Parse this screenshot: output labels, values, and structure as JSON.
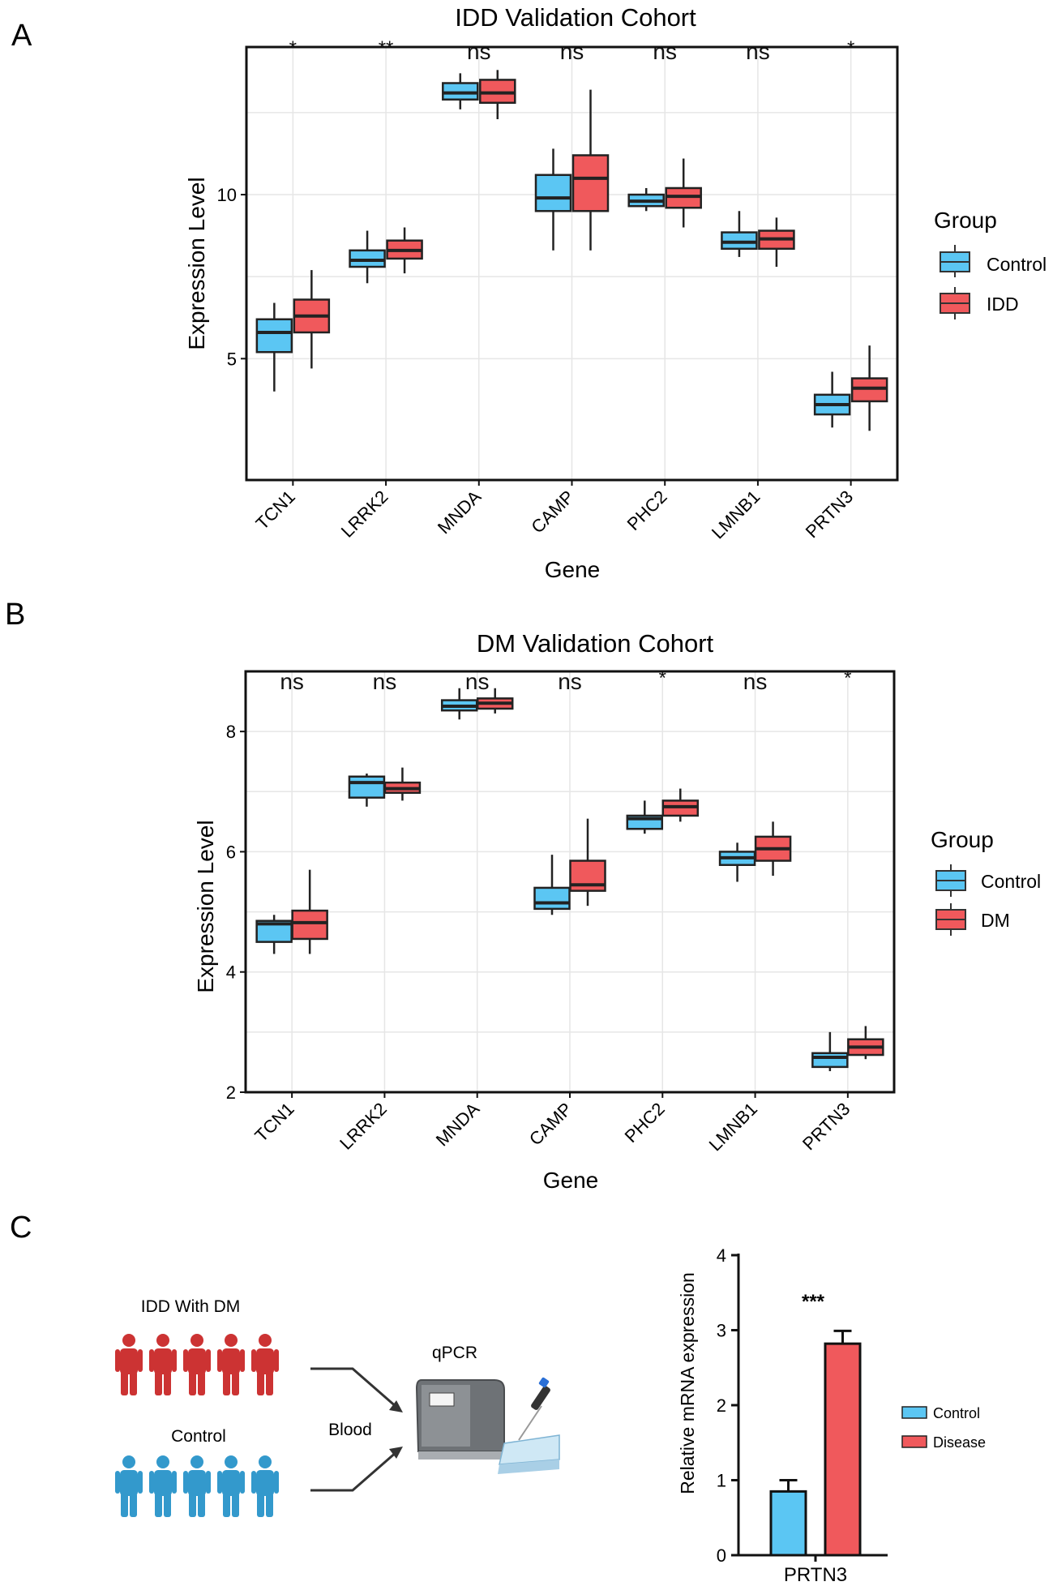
{
  "panel_labels": [
    "A",
    "B",
    "C"
  ],
  "colors": {
    "control": "#5bc6f3",
    "disease": "#f0595c",
    "person_red": "#cc3333",
    "person_blue": "#3399cc",
    "grid": "#e6e6e6"
  },
  "chart_data": [
    {
      "type": "boxplot",
      "panel": "A",
      "title": "IDD Validation Cohort",
      "xlabel": "Gene",
      "ylabel": "Expression Level",
      "ylim": [
        1.3,
        14.5
      ],
      "yticks": [
        5,
        10
      ],
      "categories": [
        "TCN1",
        "LRRK2",
        "MNDA",
        "CAMP",
        "PHC2",
        "LMNB1",
        "PRTN3"
      ],
      "significance": [
        "*",
        "**",
        "ns",
        "ns",
        "ns",
        "ns",
        "*"
      ],
      "legend": {
        "title": "Group",
        "entries": [
          "Control",
          "IDD"
        ],
        "position": "right"
      },
      "series": [
        {
          "name": "Control",
          "boxes": [
            {
              "min": 4.0,
              "q1": 5.2,
              "median": 5.8,
              "q3": 6.2,
              "max": 6.7
            },
            {
              "min": 7.3,
              "q1": 7.8,
              "median": 8.0,
              "q3": 8.3,
              "max": 8.9
            },
            {
              "min": 12.6,
              "q1": 12.9,
              "median": 13.1,
              "q3": 13.4,
              "max": 13.7
            },
            {
              "min": 8.3,
              "q1": 9.5,
              "median": 9.9,
              "q3": 10.6,
              "max": 11.4
            },
            {
              "min": 9.5,
              "q1": 9.65,
              "median": 9.8,
              "q3": 10.0,
              "max": 10.2
            },
            {
              "min": 8.1,
              "q1": 8.35,
              "median": 8.55,
              "q3": 8.85,
              "max": 9.5
            },
            {
              "min": 2.9,
              "q1": 3.3,
              "median": 3.6,
              "q3": 3.9,
              "max": 4.6
            }
          ]
        },
        {
          "name": "IDD",
          "boxes": [
            {
              "min": 4.7,
              "q1": 5.8,
              "median": 6.3,
              "q3": 6.8,
              "max": 7.7
            },
            {
              "min": 7.6,
              "q1": 8.05,
              "median": 8.3,
              "q3": 8.6,
              "max": 9.0
            },
            {
              "min": 12.3,
              "q1": 12.8,
              "median": 13.1,
              "q3": 13.5,
              "max": 13.8
            },
            {
              "min": 8.3,
              "q1": 9.5,
              "median": 10.5,
              "q3": 11.2,
              "max": 13.2
            },
            {
              "min": 9.0,
              "q1": 9.6,
              "median": 9.95,
              "q3": 10.2,
              "max": 11.1
            },
            {
              "min": 7.8,
              "q1": 8.35,
              "median": 8.65,
              "q3": 8.9,
              "max": 9.3
            },
            {
              "min": 2.8,
              "q1": 3.7,
              "median": 4.1,
              "q3": 4.4,
              "max": 5.4
            }
          ]
        }
      ]
    },
    {
      "type": "boxplot",
      "panel": "B",
      "title": "DM Validation Cohort",
      "xlabel": "Gene",
      "ylabel": "Expression Level",
      "ylim": [
        2.0,
        9.0
      ],
      "yticks": [
        2,
        4,
        6,
        8
      ],
      "categories": [
        "TCN1",
        "LRRK2",
        "MNDA",
        "CAMP",
        "PHC2",
        "LMNB1",
        "PRTN3"
      ],
      "significance": [
        "ns",
        "ns",
        "ns",
        "ns",
        "*",
        "ns",
        "*"
      ],
      "legend": {
        "title": "Group",
        "entries": [
          "Control",
          "DM"
        ],
        "position": "right"
      },
      "series": [
        {
          "name": "Control",
          "boxes": [
            {
              "min": 4.3,
              "q1": 4.5,
              "median": 4.8,
              "q3": 4.85,
              "max": 4.95
            },
            {
              "min": 6.75,
              "q1": 6.9,
              "median": 7.15,
              "q3": 7.25,
              "max": 7.3
            },
            {
              "min": 8.2,
              "q1": 8.35,
              "median": 8.42,
              "q3": 8.52,
              "max": 8.72
            },
            {
              "min": 4.95,
              "q1": 5.05,
              "median": 5.15,
              "q3": 5.4,
              "max": 5.95
            },
            {
              "min": 6.3,
              "q1": 6.38,
              "median": 6.55,
              "q3": 6.6,
              "max": 6.85
            },
            {
              "min": 5.5,
              "q1": 5.78,
              "median": 5.9,
              "q3": 6.0,
              "max": 6.15
            },
            {
              "min": 2.35,
              "q1": 2.42,
              "median": 2.58,
              "q3": 2.65,
              "max": 3.0
            }
          ]
        },
        {
          "name": "DM",
          "boxes": [
            {
              "min": 4.3,
              "q1": 4.55,
              "median": 4.82,
              "q3": 5.02,
              "max": 5.7
            },
            {
              "min": 6.85,
              "q1": 6.98,
              "median": 7.05,
              "q3": 7.15,
              "max": 7.4
            },
            {
              "min": 8.3,
              "q1": 8.38,
              "median": 8.47,
              "q3": 8.55,
              "max": 8.72
            },
            {
              "min": 5.1,
              "q1": 5.35,
              "median": 5.45,
              "q3": 5.85,
              "max": 6.55
            },
            {
              "min": 6.5,
              "q1": 6.6,
              "median": 6.75,
              "q3": 6.85,
              "max": 7.05
            },
            {
              "min": 5.6,
              "q1": 5.85,
              "median": 6.05,
              "q3": 6.25,
              "max": 6.5
            },
            {
              "min": 2.55,
              "q1": 2.62,
              "median": 2.75,
              "q3": 2.88,
              "max": 3.1
            }
          ]
        }
      ]
    },
    {
      "type": "bar",
      "panel": "C",
      "categories": [
        "PRTN3"
      ],
      "xlabel": "PRTN3",
      "ylabel": "Relative mRNA expression",
      "ylim": [
        0,
        4
      ],
      "yticks": [
        0,
        1,
        2,
        3,
        4
      ],
      "significance": "***",
      "legend": {
        "entries": [
          "Control",
          "Disease"
        ],
        "position": "right"
      },
      "series": [
        {
          "name": "Control",
          "values": [
            0.85
          ],
          "error": [
            0.15
          ]
        },
        {
          "name": "Disease",
          "values": [
            2.82
          ],
          "error": [
            0.17
          ]
        }
      ]
    }
  ],
  "schematic": {
    "group_disease_label": "IDD With DM",
    "group_control_label": "Control",
    "blood_label": "Blood",
    "qpcr_label": "qPCR"
  }
}
